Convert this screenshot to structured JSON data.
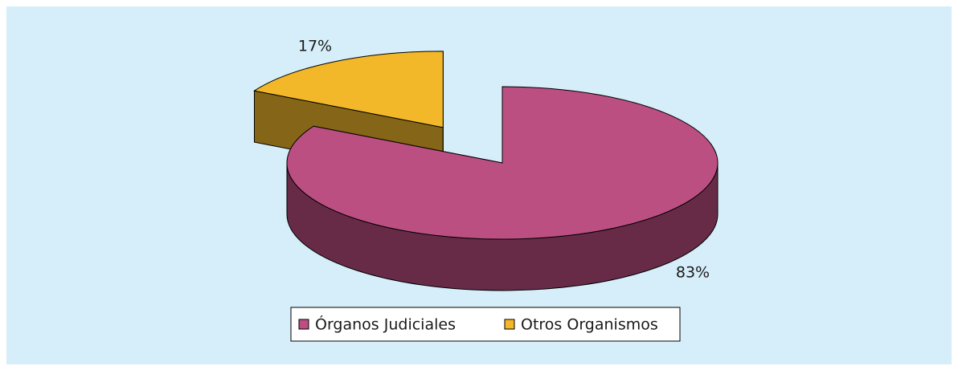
{
  "chart_data": {
    "type": "pie3d",
    "categories": [
      "Órganos Judiciales",
      "Otros Organismos"
    ],
    "values": [
      83,
      17
    ],
    "value_labels": [
      "83%",
      "17%"
    ],
    "colors": [
      "#bc4f82",
      "#f2b82a"
    ],
    "explode": [
      false,
      true
    ],
    "legend": "bottom"
  }
}
